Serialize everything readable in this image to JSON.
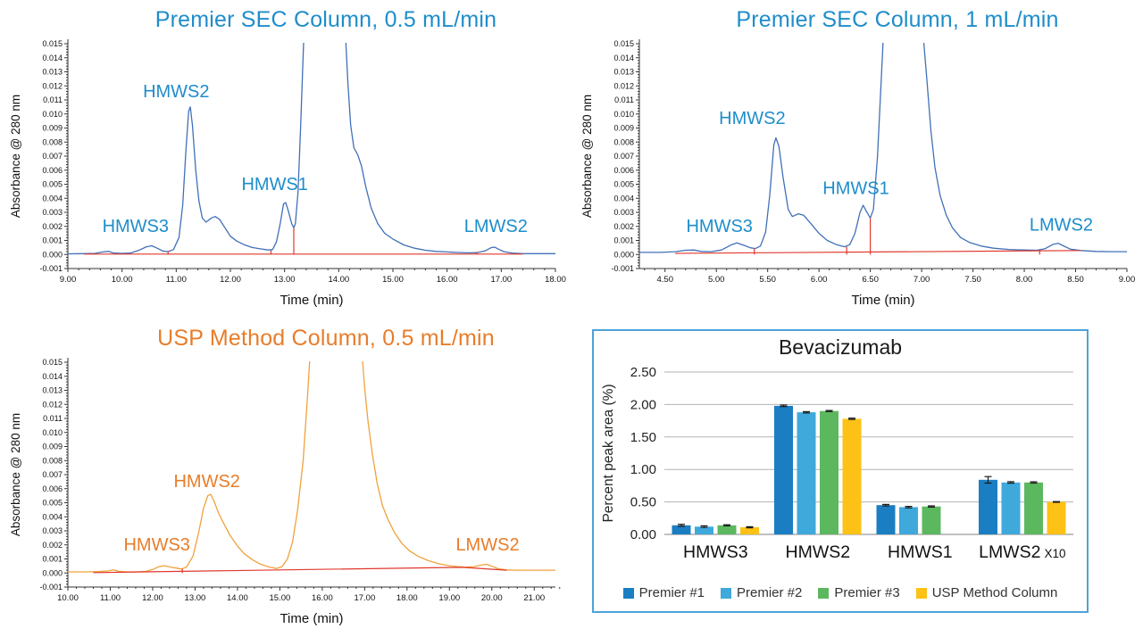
{
  "figure": {
    "background": "#ffffff"
  },
  "chart_data": [
    {
      "id": 0,
      "type": "line",
      "title": "Premier SEC Column, 0.5 mL/min",
      "title_color": "#1e8dcb",
      "xlabel": "Time (min)",
      "ylabel": "Absorbance @ 280 nm",
      "x_min": 9.0,
      "x_max": 18.0,
      "x_step": 1.0,
      "x_minor": 0.2,
      "x_label_start": 9.0,
      "y_min": -0.001,
      "y_max": 0.015,
      "y_step": 0.001,
      "trace_color": "#4170b8",
      "label_color": "#1e8dcb",
      "baseline_color": "#e0392e",
      "trace": [
        [
          9.0,
          5e-05
        ],
        [
          9.3,
          6e-05
        ],
        [
          9.5,
          8e-05
        ],
        [
          9.65,
          0.00018
        ],
        [
          9.75,
          0.00022
        ],
        [
          9.85,
          0.0001
        ],
        [
          10.0,
          8e-05
        ],
        [
          10.15,
          0.0001
        ],
        [
          10.3,
          0.00028
        ],
        [
          10.45,
          0.00055
        ],
        [
          10.55,
          0.00062
        ],
        [
          10.65,
          0.00045
        ],
        [
          10.75,
          0.00025
        ],
        [
          10.85,
          0.0002
        ],
        [
          10.95,
          0.00035
        ],
        [
          11.05,
          0.0012
        ],
        [
          11.12,
          0.0035
        ],
        [
          11.18,
          0.0075
        ],
        [
          11.23,
          0.0102
        ],
        [
          11.26,
          0.0105
        ],
        [
          11.3,
          0.0092
        ],
        [
          11.36,
          0.006
        ],
        [
          11.42,
          0.0038
        ],
        [
          11.48,
          0.0026
        ],
        [
          11.55,
          0.0023
        ],
        [
          11.65,
          0.0026
        ],
        [
          11.72,
          0.0027
        ],
        [
          11.8,
          0.0025
        ],
        [
          11.9,
          0.0019
        ],
        [
          12.0,
          0.0013
        ],
        [
          12.12,
          0.00095
        ],
        [
          12.25,
          0.0007
        ],
        [
          12.4,
          0.0005
        ],
        [
          12.55,
          0.0004
        ],
        [
          12.7,
          0.00032
        ],
        [
          12.78,
          0.00035
        ],
        [
          12.85,
          0.0009
        ],
        [
          12.92,
          0.0022
        ],
        [
          12.98,
          0.0036
        ],
        [
          13.02,
          0.0037
        ],
        [
          13.07,
          0.0031
        ],
        [
          13.13,
          0.0022
        ],
        [
          13.17,
          0.0019
        ],
        [
          13.2,
          0.0022
        ],
        [
          13.25,
          0.0045
        ],
        [
          13.3,
          0.0095
        ],
        [
          13.36,
          0.016
        ],
        [
          14.12,
          0.016
        ],
        [
          14.17,
          0.0122
        ],
        [
          14.22,
          0.0092
        ],
        [
          14.28,
          0.0076
        ],
        [
          14.35,
          0.0071
        ],
        [
          14.42,
          0.0063
        ],
        [
          14.5,
          0.0048
        ],
        [
          14.6,
          0.0033
        ],
        [
          14.72,
          0.0022
        ],
        [
          14.85,
          0.0015
        ],
        [
          15.0,
          0.0011
        ],
        [
          15.2,
          0.00068
        ],
        [
          15.4,
          0.00045
        ],
        [
          15.6,
          0.0003
        ],
        [
          15.8,
          0.00022
        ],
        [
          16.0,
          0.00018
        ],
        [
          16.2,
          0.00014
        ],
        [
          16.4,
          0.00012
        ],
        [
          16.55,
          0.00013
        ],
        [
          16.7,
          0.00025
        ],
        [
          16.82,
          0.0005
        ],
        [
          16.88,
          0.00052
        ],
        [
          16.95,
          0.00038
        ],
        [
          17.05,
          0.0002
        ],
        [
          17.2,
          0.0001
        ],
        [
          17.4,
          6e-05
        ],
        [
          17.7,
          6e-05
        ],
        [
          18.0,
          6e-05
        ]
      ],
      "baseline": [
        [
          9.3,
          3e-05
        ],
        [
          17.4,
          3e-05
        ]
      ],
      "drop_lines": [
        [
          10.85,
          0.00025
        ],
        [
          12.75,
          0.0003
        ],
        [
          13.17,
          0.0019
        ],
        [
          16.55,
          0.00018
        ]
      ],
      "peak_labels": [
        {
          "text": "HMWS3",
          "t": 10.25,
          "a": 0.0016
        },
        {
          "text": "HMWS2",
          "t": 11.0,
          "a": 0.0112
        },
        {
          "text": "HMWS1",
          "t": 12.82,
          "a": 0.0046
        },
        {
          "text": "LMWS2",
          "t": 16.9,
          "a": 0.0016
        }
      ]
    },
    {
      "id": 1,
      "type": "line",
      "title": "Premier SEC Column, 1 mL/min",
      "title_color": "#1e8dcb",
      "xlabel": "Time (min)",
      "ylabel": "Absorbance @ 280 nm",
      "x_min": 4.25,
      "x_max": 9.0,
      "x_step": 0.5,
      "x_minor": 0.1,
      "x_label_start": 4.5,
      "y_min": -0.001,
      "y_max": 0.015,
      "y_step": 0.001,
      "trace_color": "#4170b8",
      "label_color": "#1e8dcb",
      "baseline_color": "#e0392e",
      "trace": [
        [
          4.25,
          0.00015
        ],
        [
          4.45,
          0.00015
        ],
        [
          4.6,
          0.0002
        ],
        [
          4.7,
          0.0003
        ],
        [
          4.78,
          0.00032
        ],
        [
          4.85,
          0.00022
        ],
        [
          4.95,
          0.0002
        ],
        [
          5.05,
          0.00032
        ],
        [
          5.15,
          0.0007
        ],
        [
          5.2,
          0.00082
        ],
        [
          5.27,
          0.00065
        ],
        [
          5.33,
          0.00048
        ],
        [
          5.38,
          0.00042
        ],
        [
          5.43,
          0.0006
        ],
        [
          5.48,
          0.0016
        ],
        [
          5.52,
          0.0042
        ],
        [
          5.56,
          0.0078
        ],
        [
          5.58,
          0.0083
        ],
        [
          5.61,
          0.0077
        ],
        [
          5.65,
          0.0055
        ],
        [
          5.7,
          0.0032
        ],
        [
          5.74,
          0.0027
        ],
        [
          5.8,
          0.0029
        ],
        [
          5.85,
          0.0028
        ],
        [
          5.92,
          0.0022
        ],
        [
          6.0,
          0.0015
        ],
        [
          6.08,
          0.001
        ],
        [
          6.17,
          0.0007
        ],
        [
          6.25,
          0.00055
        ],
        [
          6.3,
          0.0007
        ],
        [
          6.35,
          0.0015
        ],
        [
          6.4,
          0.003
        ],
        [
          6.43,
          0.0035
        ],
        [
          6.46,
          0.0031
        ],
        [
          6.5,
          0.0026
        ],
        [
          6.53,
          0.0032
        ],
        [
          6.57,
          0.007
        ],
        [
          6.61,
          0.013
        ],
        [
          6.63,
          0.016
        ],
        [
          7.01,
          0.016
        ],
        [
          7.05,
          0.0125
        ],
        [
          7.09,
          0.0088
        ],
        [
          7.13,
          0.0062
        ],
        [
          7.18,
          0.0042
        ],
        [
          7.24,
          0.0028
        ],
        [
          7.3,
          0.0019
        ],
        [
          7.38,
          0.0012
        ],
        [
          7.47,
          0.00085
        ],
        [
          7.58,
          0.0006
        ],
        [
          7.7,
          0.00045
        ],
        [
          7.85,
          0.00036
        ],
        [
          8.0,
          0.00032
        ],
        [
          8.12,
          0.0003
        ],
        [
          8.2,
          0.0004
        ],
        [
          8.28,
          0.00072
        ],
        [
          8.33,
          0.0008
        ],
        [
          8.38,
          0.00062
        ],
        [
          8.45,
          0.00038
        ],
        [
          8.55,
          0.00028
        ],
        [
          8.7,
          0.00022
        ],
        [
          8.85,
          0.0002
        ],
        [
          9.0,
          0.0002
        ]
      ],
      "baseline": [
        [
          4.6,
          8e-05
        ],
        [
          8.55,
          0.00028
        ]
      ],
      "drop_lines": [
        [
          5.37,
          0.00042
        ],
        [
          6.27,
          0.00055
        ],
        [
          6.5,
          0.0026
        ],
        [
          8.15,
          0.0003
        ]
      ],
      "peak_labels": [
        {
          "text": "HMWS3",
          "t": 5.03,
          "a": 0.0016
        },
        {
          "text": "HMWS2",
          "t": 5.35,
          "a": 0.0093
        },
        {
          "text": "HMWS1",
          "t": 6.36,
          "a": 0.0043
        },
        {
          "text": "LMWS2",
          "t": 8.36,
          "a": 0.0017
        }
      ]
    },
    {
      "id": 2,
      "type": "line",
      "title": "USP Method Column, 0.5 mL/min",
      "title_color": "#e87d2a",
      "xlabel": "Time (min)",
      "ylabel": "Absorbance @ 280 nm",
      "x_min": 10.0,
      "x_max": 21.5,
      "x_step": 1.0,
      "x_minor": 0.2,
      "x_label_start": 10.0,
      "y_min": -0.001,
      "y_max": 0.015,
      "y_step": 0.001,
      "trace_color": "#f0a23c",
      "label_color": "#e87d2a",
      "baseline_color": "#e0392e",
      "trace": [
        [
          10.0,
          8e-05
        ],
        [
          10.4,
          8e-05
        ],
        [
          10.7,
          0.0001
        ],
        [
          10.95,
          0.00015
        ],
        [
          11.08,
          0.00022
        ],
        [
          11.2,
          0.00012
        ],
        [
          11.4,
          8e-05
        ],
        [
          11.6,
          8e-05
        ],
        [
          11.85,
          0.00012
        ],
        [
          12.0,
          0.00025
        ],
        [
          12.15,
          0.00045
        ],
        [
          12.28,
          0.00052
        ],
        [
          12.42,
          0.00042
        ],
        [
          12.55,
          0.00035
        ],
        [
          12.68,
          0.00028
        ],
        [
          12.8,
          0.00042
        ],
        [
          12.95,
          0.0012
        ],
        [
          13.08,
          0.0028
        ],
        [
          13.2,
          0.0046
        ],
        [
          13.3,
          0.0055
        ],
        [
          13.37,
          0.0056
        ],
        [
          13.45,
          0.0051
        ],
        [
          13.55,
          0.0043
        ],
        [
          13.68,
          0.0035
        ],
        [
          13.82,
          0.0027
        ],
        [
          13.98,
          0.002
        ],
        [
          14.15,
          0.0014
        ],
        [
          14.35,
          0.00095
        ],
        [
          14.55,
          0.00062
        ],
        [
          14.75,
          0.00042
        ],
        [
          14.92,
          0.00032
        ],
        [
          15.05,
          0.00045
        ],
        [
          15.18,
          0.001
        ],
        [
          15.3,
          0.0022
        ],
        [
          15.42,
          0.0045
        ],
        [
          15.55,
          0.008
        ],
        [
          15.65,
          0.0125
        ],
        [
          15.72,
          0.016
        ],
        [
          16.93,
          0.016
        ],
        [
          17.0,
          0.0132
        ],
        [
          17.08,
          0.0108
        ],
        [
          17.18,
          0.0085
        ],
        [
          17.3,
          0.0063
        ],
        [
          17.42,
          0.0048
        ],
        [
          17.55,
          0.0038
        ],
        [
          17.7,
          0.0029
        ],
        [
          17.88,
          0.0021
        ],
        [
          18.05,
          0.0016
        ],
        [
          18.25,
          0.0012
        ],
        [
          18.5,
          0.00088
        ],
        [
          18.75,
          0.00066
        ],
        [
          19.0,
          0.00052
        ],
        [
          19.2,
          0.00045
        ],
        [
          19.4,
          0.00042
        ],
        [
          19.6,
          0.00046
        ],
        [
          19.78,
          0.00058
        ],
        [
          19.88,
          0.00062
        ],
        [
          20.0,
          0.00048
        ],
        [
          20.15,
          0.0003
        ],
        [
          20.35,
          0.00022
        ],
        [
          20.6,
          0.0002
        ],
        [
          20.9,
          0.0002
        ],
        [
          21.2,
          0.0002
        ],
        [
          21.5,
          0.0002
        ]
      ],
      "baseline": [
        [
          10.6,
          3e-05
        ],
        [
          19.3,
          0.0004
        ],
        [
          20.35,
          0.0002
        ]
      ],
      "drop_lines": [
        [
          12.7,
          0.0003
        ]
      ],
      "peak_labels": [
        {
          "text": "HMWS3",
          "t": 12.1,
          "a": 0.0016
        },
        {
          "text": "HMWS2",
          "t": 13.28,
          "a": 0.0061
        },
        {
          "text": "LMWS2",
          "t": 19.9,
          "a": 0.0016
        }
      ]
    },
    {
      "id": 3,
      "type": "bar",
      "title": "Bevacizumab",
      "title_color": "#1a1a1a",
      "ylabel": "Percent peak area (%)",
      "ylim": [
        0,
        2.5
      ],
      "ystep": 0.5,
      "grid_color": "#b3b3b3",
      "axis_color": "#808080",
      "error_color": "#1a1a1a",
      "panel_border_color": "#4da3d9",
      "categories": [
        {
          "label": "HMWS3",
          "suffix": ""
        },
        {
          "label": "HMWS2",
          "suffix": ""
        },
        {
          "label": "HMWS1",
          "suffix": ""
        },
        {
          "label": "LMWS2",
          "suffix": "X10"
        }
      ],
      "series": [
        {
          "name": "Premier #1",
          "color": "#1b7ec3",
          "values": [
            0.14,
            1.98,
            0.45,
            0.84
          ],
          "errors": [
            0.015,
            0.012,
            0.012,
            0.05
          ]
        },
        {
          "name": "Premier #2",
          "color": "#3fa9dc",
          "values": [
            0.12,
            1.88,
            0.42,
            0.8
          ],
          "errors": [
            0.012,
            0.01,
            0.012,
            0.012
          ]
        },
        {
          "name": "Premier #3",
          "color": "#5cb85f",
          "values": [
            0.14,
            1.9,
            0.43,
            0.8
          ],
          "errors": [
            0.008,
            0.008,
            0.01,
            0.01
          ]
        },
        {
          "name": "USP Method Column",
          "color": "#fdc215",
          "values": [
            0.11,
            1.78,
            null,
            0.5
          ],
          "errors": [
            0.008,
            0.01,
            null,
            0.006
          ]
        }
      ]
    }
  ]
}
